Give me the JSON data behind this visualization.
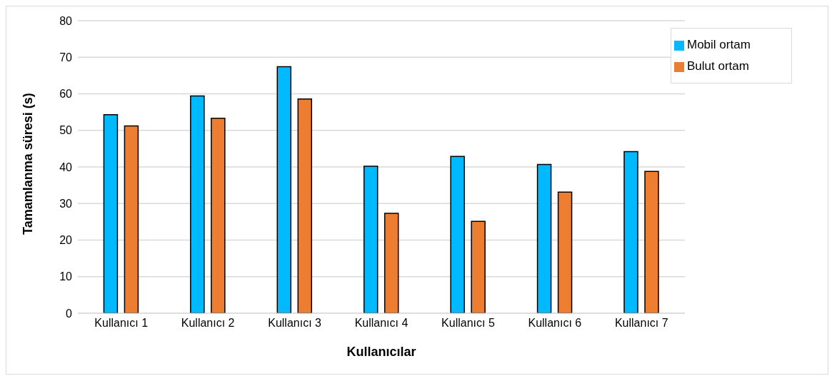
{
  "chart_data": {
    "type": "bar",
    "xlabel": "Kullanıcılar",
    "ylabel": "Tamamlanma süresi (s)",
    "categories": [
      "Kullanıcı 1",
      "Kullanıcı 2",
      "Kullanıcı 3",
      "Kullanıcı 4",
      "Kullanıcı 5",
      "Kullanıcı 6",
      "Kullanıcı 7"
    ],
    "series": [
      {
        "name": "Mobil ortam",
        "color": "#00b9ff",
        "values": [
          54.3,
          59.4,
          67.4,
          40.2,
          42.9,
          40.7,
          44.2
        ]
      },
      {
        "name": "Bulut ortam",
        "color": "#ed7d31",
        "values": [
          51.2,
          53.3,
          58.6,
          27.3,
          25.1,
          33.1,
          38.8
        ]
      }
    ],
    "ylim": [
      0,
      80
    ],
    "yticks": [
      0,
      10,
      20,
      30,
      40,
      50,
      60,
      70,
      80
    ],
    "grid": "y",
    "legend": "top right"
  }
}
